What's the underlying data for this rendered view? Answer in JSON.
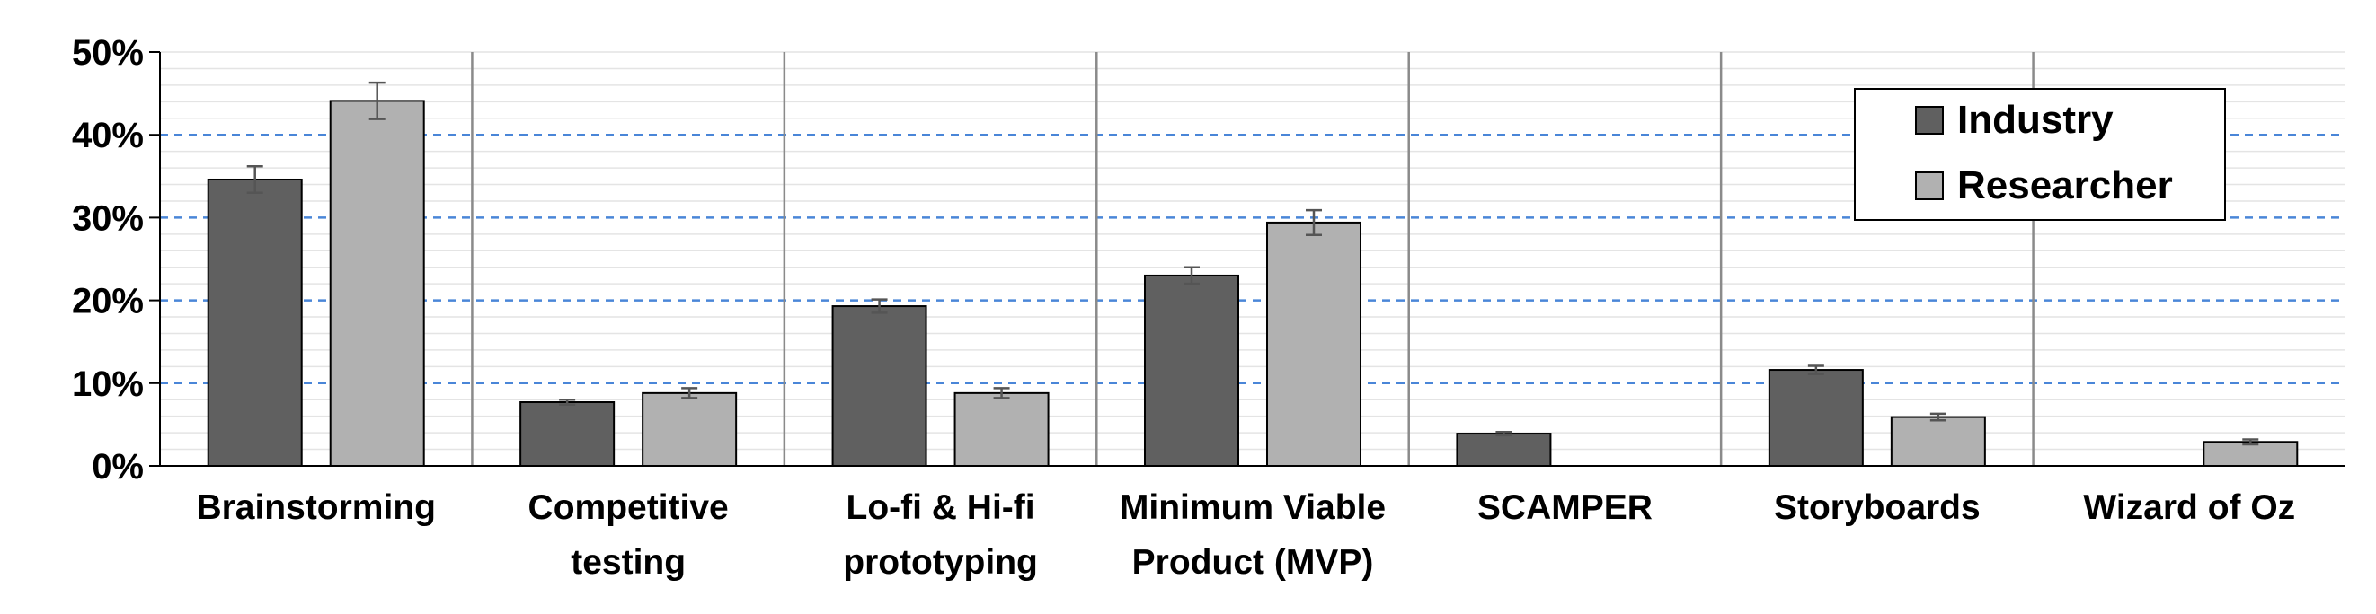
{
  "chart_data": {
    "type": "bar",
    "categories": [
      [
        "Brainstorming"
      ],
      [
        "Competitive",
        "testing"
      ],
      [
        "Lo-fi & Hi-fi",
        "prototyping"
      ],
      [
        "Minimum Viable",
        "Product (MVP)"
      ],
      [
        "SCAMPER"
      ],
      [
        "Storyboards"
      ],
      [
        "Wizard of Oz"
      ]
    ],
    "series": [
      {
        "name": "Industry",
        "color": "#606060",
        "values": [
          34.6,
          7.7,
          19.3,
          23.0,
          3.9,
          11.6,
          null
        ],
        "errors": [
          1.6,
          0.3,
          0.8,
          1.0,
          0.2,
          0.5,
          null
        ]
      },
      {
        "name": "Researcher",
        "color": "#b1b1b1",
        "values": [
          44.1,
          8.8,
          8.8,
          29.4,
          null,
          5.9,
          2.9
        ],
        "errors": [
          2.2,
          0.6,
          0.6,
          1.5,
          null,
          0.4,
          0.3
        ]
      }
    ],
    "ylim": [
      0,
      50
    ],
    "yticks": [
      "0%",
      "10%",
      "20%",
      "30%",
      "40%",
      "50%"
    ],
    "grid": "dashed major lines every 10%, light minor lines every 2%",
    "legend": "top-right"
  }
}
